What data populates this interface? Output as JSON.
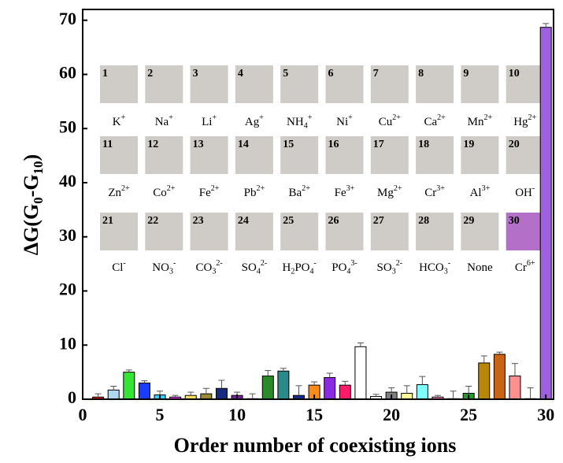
{
  "chart_data": {
    "type": "bar",
    "x": [
      1,
      2,
      3,
      4,
      5,
      6,
      7,
      8,
      9,
      10,
      11,
      12,
      13,
      14,
      15,
      16,
      17,
      18,
      19,
      20,
      21,
      22,
      23,
      24,
      25,
      26,
      27,
      28,
      29,
      30
    ],
    "values": [
      0.4,
      1.7,
      5.0,
      3.0,
      0.8,
      0.4,
      0.7,
      1.0,
      2.0,
      0.7,
      0.1,
      4.3,
      5.2,
      0.7,
      2.6,
      4.0,
      2.6,
      9.7,
      0.5,
      1.3,
      1.1,
      2.7,
      0.4,
      0.1,
      1.1,
      6.7,
      8.3,
      4.3,
      0.1,
      68.7
    ],
    "errors": [
      0.6,
      0.7,
      0.4,
      0.4,
      0.7,
      0.3,
      0.6,
      1.0,
      1.5,
      0.6,
      0.9,
      1.0,
      0.5,
      1.8,
      0.6,
      0.8,
      0.7,
      0.7,
      0.4,
      0.8,
      1.4,
      1.5,
      0.3,
      1.4,
      1.3,
      1.3,
      0.4,
      2.3,
      2.0,
      0.7
    ],
    "colors": [
      "#e02020",
      "#add8f0",
      "#33e633",
      "#1a3cff",
      "#33d0ff",
      "#e040e0",
      "#ffe066",
      "#9a8a30",
      "#1a2a80",
      "#8020a0",
      "#ffffff",
      "#2a8a2a",
      "#2a8a8a",
      "#1a2a90",
      "#ff8c1a",
      "#8a2be2",
      "#ff1a6a",
      "#ffffff",
      "#ffffff",
      "#808080",
      "#ffff99",
      "#80ffff",
      "#ff80c0",
      "#ffffff",
      "#2a9a2a",
      "#b8860b",
      "#c86414",
      "#ff9090",
      "#ffffff",
      "#a060e0"
    ],
    "xlim": [
      0,
      30.5
    ],
    "ylim": [
      0,
      72
    ],
    "xticks": [
      0,
      5,
      10,
      15,
      20,
      25,
      30
    ],
    "yticks": [
      0,
      10,
      20,
      30,
      40,
      50,
      60,
      70
    ],
    "xlabel": "Order number of coexisting ions",
    "ylabel": [
      {
        "text": "ΔG(G"
      },
      {
        "sub": "0"
      },
      {
        "text": "-G"
      },
      {
        "sub": "10"
      },
      {
        "text": ")"
      }
    ],
    "inset": {
      "tile_color": "#cfccc7",
      "tiles": [
        {
          "number": 1,
          "label": [
            {
              "text": "K"
            },
            {
              "sup": "+"
            }
          ]
        },
        {
          "number": 2,
          "label": [
            {
              "text": "Na"
            },
            {
              "sup": "+"
            }
          ]
        },
        {
          "number": 3,
          "label": [
            {
              "text": "Li"
            },
            {
              "sup": "+"
            }
          ]
        },
        {
          "number": 4,
          "label": [
            {
              "text": "Ag"
            },
            {
              "sup": "+"
            }
          ]
        },
        {
          "number": 5,
          "label": [
            {
              "text": "NH"
            },
            {
              "sub": "4"
            },
            {
              "sup": "+"
            }
          ]
        },
        {
          "number": 6,
          "label": [
            {
              "text": "Ni"
            },
            {
              "sup": "+"
            }
          ]
        },
        {
          "number": 7,
          "label": [
            {
              "text": "Cu"
            },
            {
              "sup": "2+"
            }
          ]
        },
        {
          "number": 8,
          "label": [
            {
              "text": "Ca"
            },
            {
              "sup": "2+"
            }
          ]
        },
        {
          "number": 9,
          "label": [
            {
              "text": "Mn"
            },
            {
              "sup": "2+"
            }
          ]
        },
        {
          "number": 10,
          "label": [
            {
              "text": "Hg"
            },
            {
              "sup": "2+"
            }
          ]
        },
        {
          "number": 11,
          "label": [
            {
              "text": "Zn"
            },
            {
              "sup": "2+"
            }
          ]
        },
        {
          "number": 12,
          "label": [
            {
              "text": "Co"
            },
            {
              "sup": "2+"
            }
          ]
        },
        {
          "number": 13,
          "label": [
            {
              "text": "Fe"
            },
            {
              "sup": "2+"
            }
          ]
        },
        {
          "number": 14,
          "label": [
            {
              "text": "Pb"
            },
            {
              "sup": "2+"
            }
          ]
        },
        {
          "number": 15,
          "label": [
            {
              "text": "Ba"
            },
            {
              "sup": "2+"
            }
          ]
        },
        {
          "number": 16,
          "label": [
            {
              "text": "Fe"
            },
            {
              "sup": "3+"
            }
          ]
        },
        {
          "number": 17,
          "label": [
            {
              "text": "Mg"
            },
            {
              "sup": "2+"
            }
          ]
        },
        {
          "number": 18,
          "label": [
            {
              "text": "Cr"
            },
            {
              "sup": "3+"
            }
          ]
        },
        {
          "number": 19,
          "label": [
            {
              "text": "Al"
            },
            {
              "sup": "3+"
            }
          ]
        },
        {
          "number": 20,
          "label": [
            {
              "text": "OH"
            },
            {
              "sup": "-"
            }
          ]
        },
        {
          "number": 21,
          "label": [
            {
              "text": "Cl"
            },
            {
              "sup": "-"
            }
          ]
        },
        {
          "number": 22,
          "label": [
            {
              "text": "NO"
            },
            {
              "sub": "3"
            },
            {
              "sup": "-"
            }
          ]
        },
        {
          "number": 23,
          "label": [
            {
              "text": "CO"
            },
            {
              "sub": "3"
            },
            {
              "sup": "2-"
            }
          ]
        },
        {
          "number": 24,
          "label": [
            {
              "text": "SO"
            },
            {
              "sub": "4"
            },
            {
              "sup": "2-"
            }
          ]
        },
        {
          "number": 25,
          "label": [
            {
              "text": "H"
            },
            {
              "sub": "2"
            },
            {
              "text": "PO"
            },
            {
              "sub": "4"
            },
            {
              "sup": "-"
            }
          ]
        },
        {
          "number": 26,
          "label": [
            {
              "text": "PO"
            },
            {
              "sub": "4"
            },
            {
              "sup": "3-"
            }
          ]
        },
        {
          "number": 27,
          "label": [
            {
              "text": "SO"
            },
            {
              "sub": "3"
            },
            {
              "sup": "2-"
            }
          ]
        },
        {
          "number": 28,
          "label": [
            {
              "text": "HCO"
            },
            {
              "sub": "3"
            },
            {
              "sup": "-"
            }
          ]
        },
        {
          "number": 29,
          "label": [
            {
              "text": "None"
            }
          ]
        },
        {
          "number": 30,
          "color": "#b46fc8",
          "label": [
            {
              "text": "Cr"
            },
            {
              "sup": "6+"
            }
          ]
        }
      ]
    }
  }
}
